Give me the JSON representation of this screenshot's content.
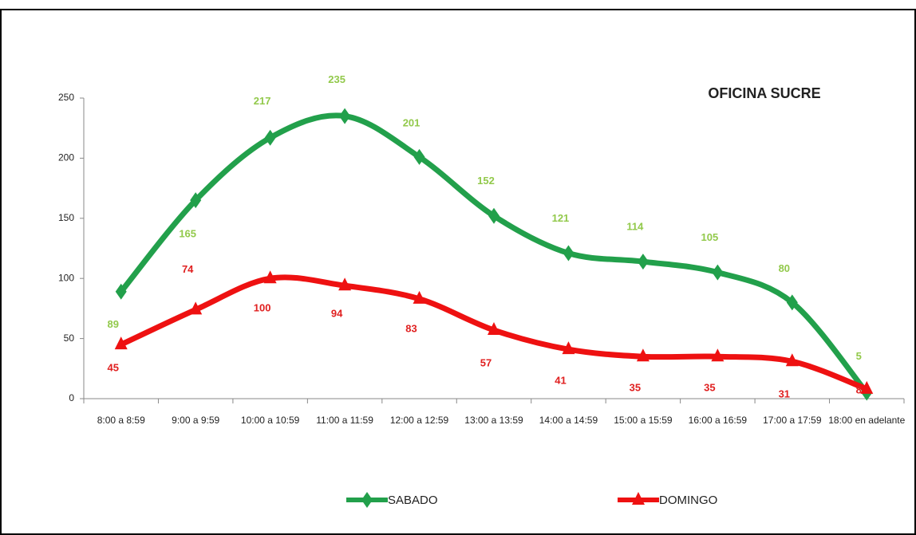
{
  "chart_data": {
    "type": "line",
    "title": "OFICINA SUCRE",
    "categories": [
      "8:00 a 8:59",
      "9:00 a 9:59",
      "10:00 a 10:59",
      "11:00 a 11:59",
      "12:00 a 12:59",
      "13:00 a 13:59",
      "14:00 a 14:59",
      "15:00 a 15:59",
      "16:00 a 16:59",
      "17:00 a 17:59",
      "18:00 en adelante"
    ],
    "series": [
      {
        "name": "SABADO",
        "color": "#22a04b",
        "label_color": "#92c94b",
        "marker": "diamond",
        "values": [
          89,
          165,
          217,
          235,
          201,
          152,
          121,
          114,
          105,
          80,
          5
        ]
      },
      {
        "name": "DOMINGO",
        "color": "#ee1111",
        "label_color": "#e02020",
        "marker": "triangle",
        "values": [
          45,
          74,
          100,
          94,
          83,
          57,
          41,
          35,
          35,
          31,
          8
        ]
      }
    ],
    "ylim": [
      0,
      250
    ],
    "yticks": [
      0,
      50,
      100,
      150,
      200,
      250
    ],
    "grid": false,
    "smooth": true,
    "legend": "bottom"
  }
}
